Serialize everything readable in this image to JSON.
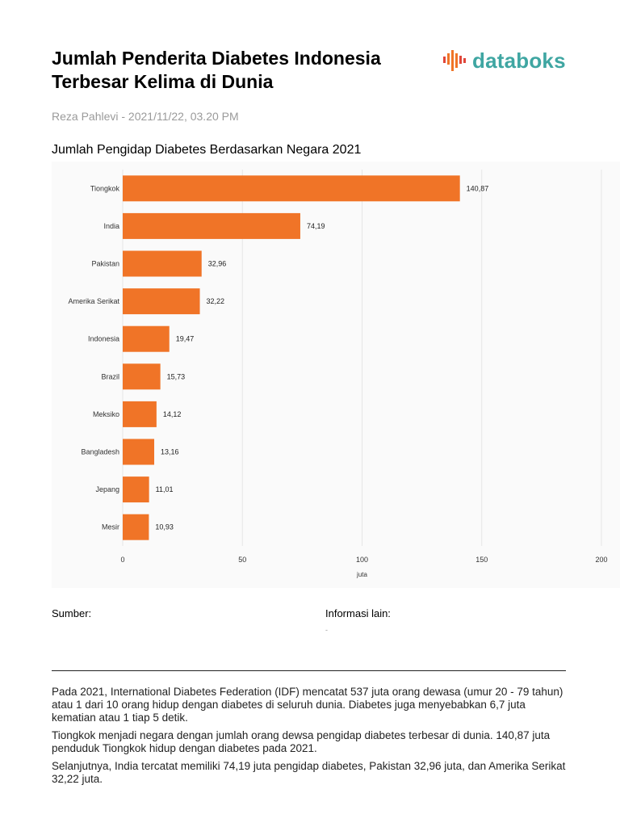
{
  "header": {
    "title_line1": "Jumlah Penderita Diabetes Indonesia",
    "title_line2": "Terbesar Kelima di Dunia",
    "logo_text": "databoks"
  },
  "byline": "Reza Pahlevi - 2021/11/22, 03.20 PM",
  "chart_title": "Jumlah Pengidap Diabetes Berdasarkan Negara 2021",
  "colors": {
    "bar": "#f07427",
    "logo_teal": "#3fa6a2",
    "logo_orange": "#f07427",
    "logo_red": "#e0463a",
    "grid": "#e6e6e6"
  },
  "chart_data": {
    "type": "bar",
    "orientation": "horizontal",
    "categories": [
      "Tiongkok",
      "India",
      "Pakistan",
      "Amerika Serikat",
      "Indonesia",
      "Brazil",
      "Meksiko",
      "Bangladesh",
      "Jepang",
      "Mesir"
    ],
    "values": [
      140.87,
      74.19,
      32.96,
      32.22,
      19.47,
      15.73,
      14.12,
      13.16,
      11.01,
      10.93
    ],
    "value_labels": [
      "140,87",
      "74,19",
      "32,96",
      "32,22",
      "19,47",
      "15,73",
      "14,12",
      "13,16",
      "11,01",
      "10,93"
    ],
    "title": "Jumlah Pengidap Diabetes Berdasarkan Negara 2021",
    "xlabel": "juta",
    "ylabel": "",
    "xlim": [
      0,
      200
    ],
    "xticks": [
      0,
      50,
      100,
      150,
      200
    ],
    "xtick_labels": [
      "0",
      "50",
      "100",
      "150",
      "200"
    ],
    "grid": true,
    "legend": "none"
  },
  "footer": {
    "source_label": "Sumber:",
    "info_label": "Informasi lain:",
    "info_value": "-"
  },
  "paragraphs": [
    "Pada 2021, International Diabetes Federation (IDF) mencatat 537 juta orang dewasa (umur 20 - 79 tahun) atau 1 dari 10 orang hidup dengan diabetes di seluruh dunia. Diabetes juga menyebabkan 6,7 juta kematian atau 1 tiap 5 detik.",
    "Tiongkok menjadi negara dengan jumlah orang dewsa pengidap diabetes terbesar di dunia. 140,87 juta penduduk Tiongkok hidup dengan diabetes pada 2021.",
    "Selanjutnya, India tercatat memiliki 74,19 juta pengidap diabetes, Pakistan 32,96 juta, dan Amerika Serikat 32,22 juta."
  ]
}
